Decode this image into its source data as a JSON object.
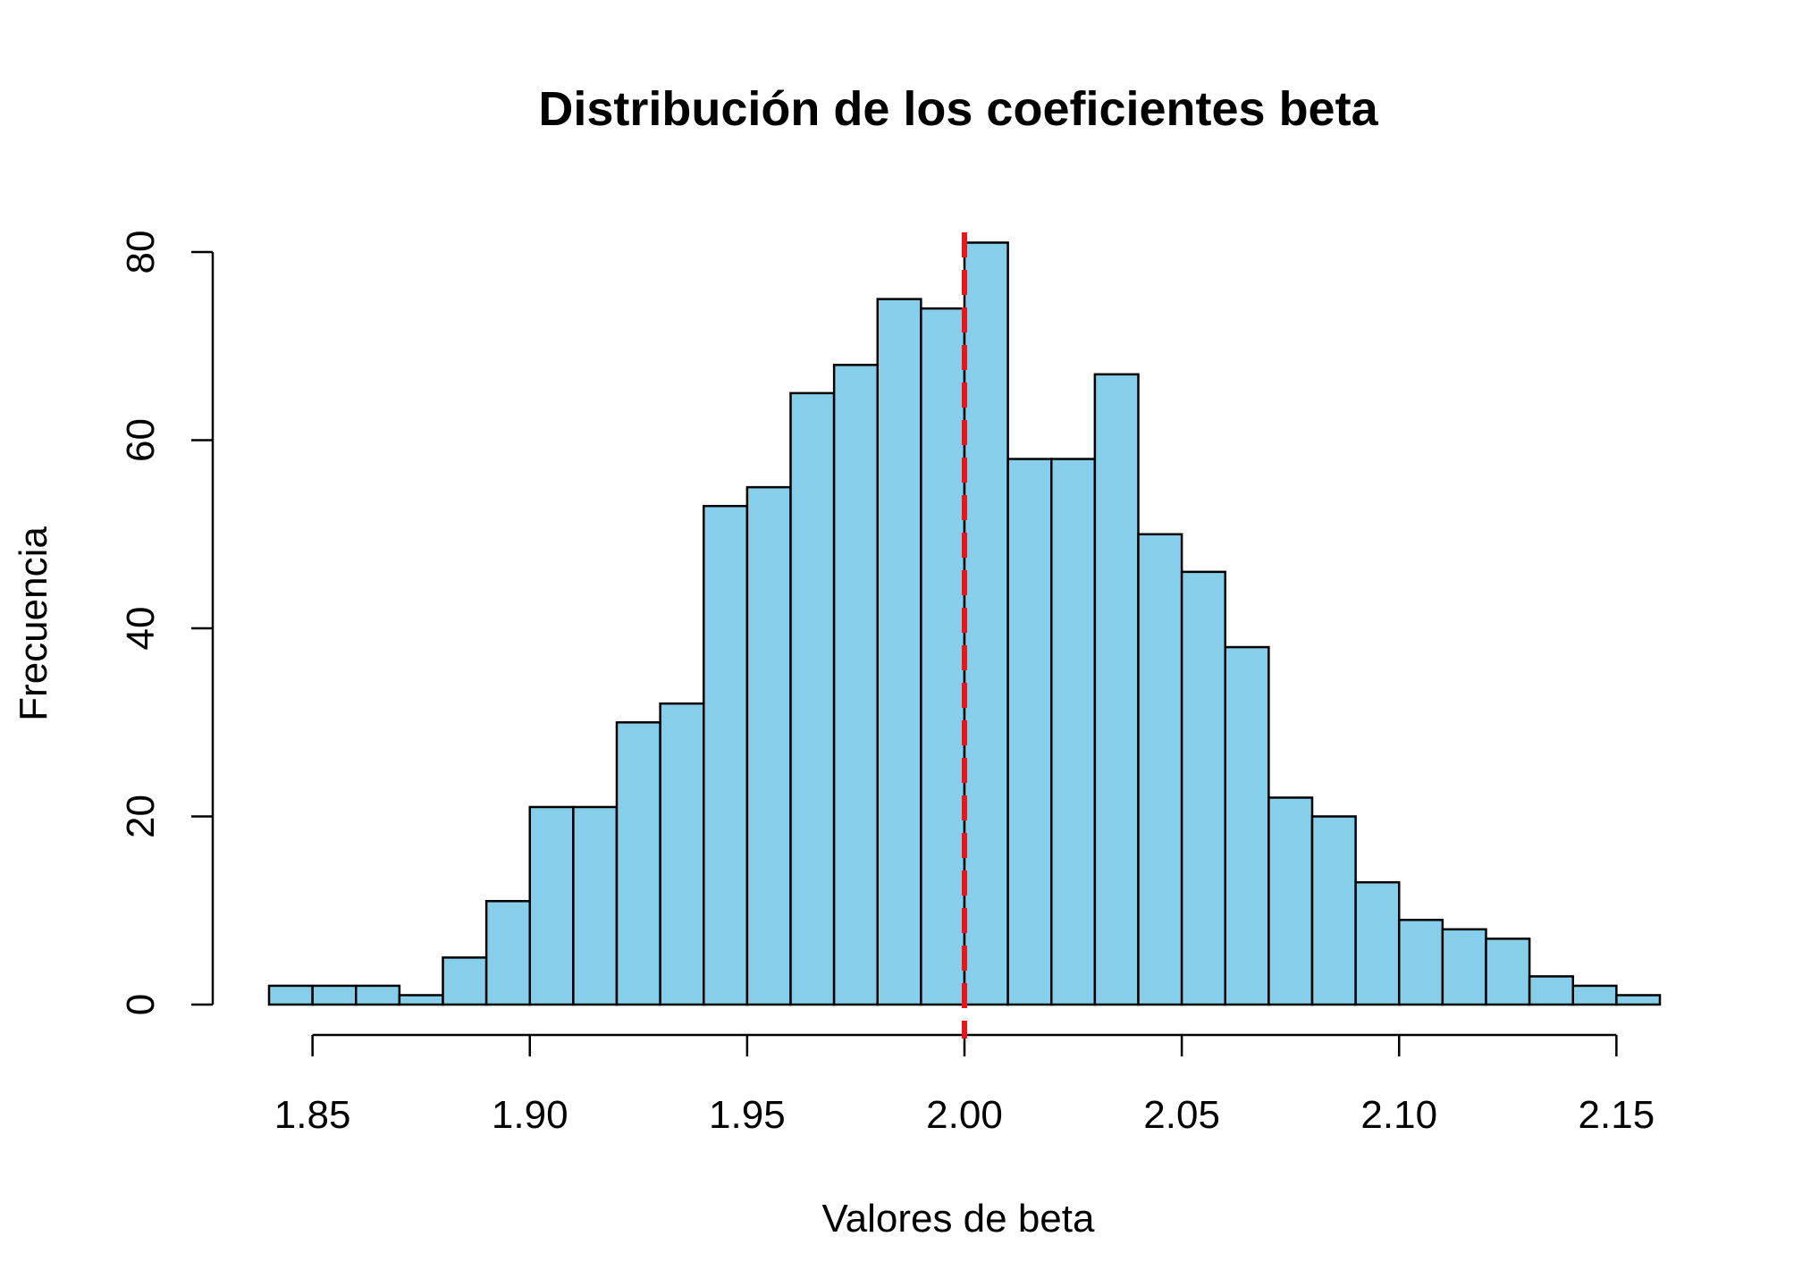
{
  "chart_data": {
    "type": "bar",
    "title": "Distribución de los coeficientes beta",
    "xlabel": "Valores de beta",
    "ylabel": "Frecuencia",
    "bin_edges": [
      1.84,
      1.85,
      1.86,
      1.87,
      1.88,
      1.89,
      1.9,
      1.91,
      1.92,
      1.93,
      1.94,
      1.95,
      1.96,
      1.97,
      1.98,
      1.99,
      2.0,
      2.01,
      2.02,
      2.03,
      2.04,
      2.05,
      2.06,
      2.07,
      2.08,
      2.09,
      2.1,
      2.11,
      2.12,
      2.13,
      2.14,
      2.15,
      2.16
    ],
    "values": [
      2,
      2,
      2,
      1,
      5,
      11,
      21,
      21,
      30,
      32,
      53,
      55,
      65,
      68,
      75,
      74,
      81,
      58,
      58,
      67,
      50,
      46,
      38,
      22,
      20,
      13,
      9,
      8,
      7,
      3,
      2,
      1
    ],
    "xticks": [
      1.85,
      1.9,
      1.95,
      2.0,
      2.05,
      2.1,
      2.15
    ],
    "xtick_labels": [
      "1.85",
      "1.90",
      "1.95",
      "2.00",
      "2.05",
      "2.10",
      "2.15"
    ],
    "yticks": [
      0,
      20,
      40,
      60,
      80
    ],
    "ytick_labels": [
      "0",
      "20",
      "40",
      "60",
      "80"
    ],
    "xlim": [
      1.84,
      2.16
    ],
    "ylim": [
      0,
      83
    ],
    "reference_line": {
      "x": 2.0,
      "style": "dashed",
      "color": "#e8161b"
    },
    "bar_color": "#87ceeb",
    "grid": false,
    "legend": "none"
  }
}
